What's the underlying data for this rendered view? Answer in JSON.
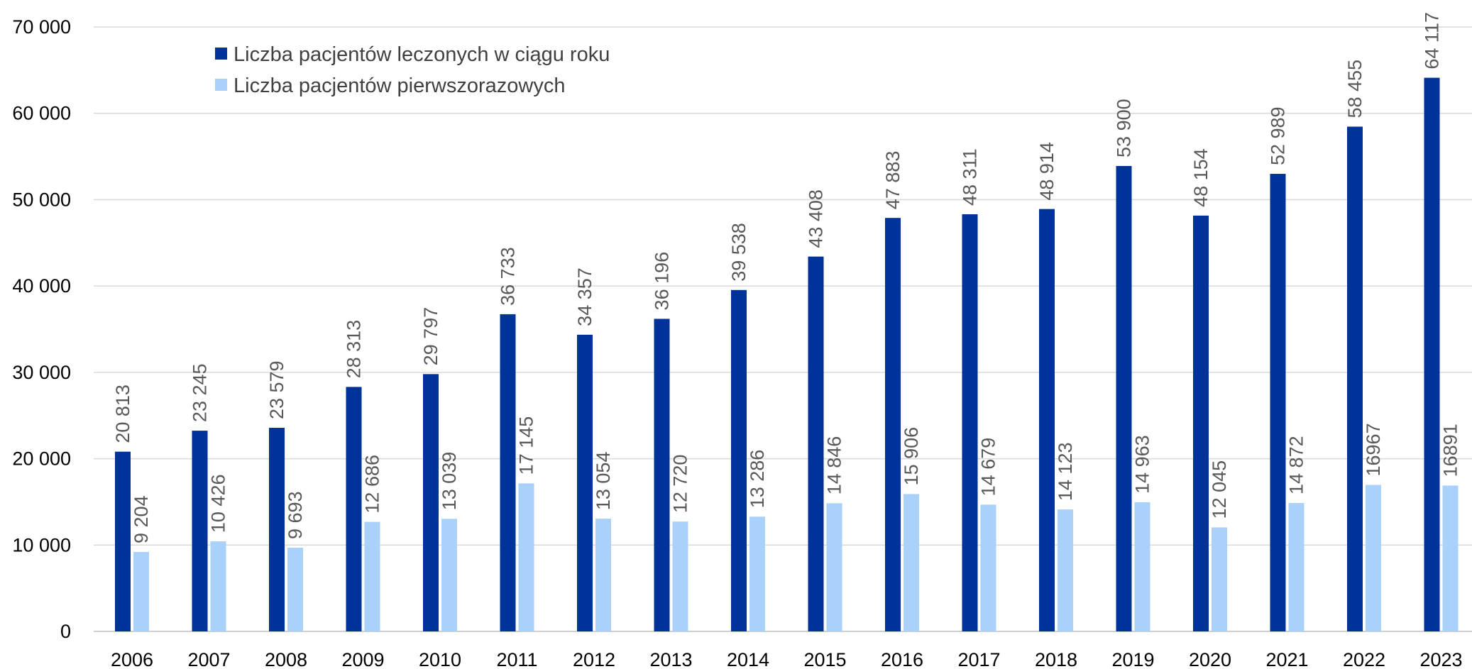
{
  "chart_data": {
    "type": "bar",
    "categories": [
      "2006",
      "2007",
      "2008",
      "2009",
      "2010",
      "2011",
      "2012",
      "2013",
      "2014",
      "2015",
      "2016",
      "2017",
      "2018",
      "2019",
      "2020",
      "2021",
      "2022",
      "2023"
    ],
    "series": [
      {
        "name": "Liczba pacjentów leczonych w ciągu roku",
        "color": "#003399",
        "values": [
          20813,
          23245,
          23579,
          28313,
          29797,
          36733,
          34357,
          36196,
          39538,
          43408,
          47883,
          48311,
          48914,
          53900,
          48154,
          52989,
          58455,
          64117
        ],
        "labels": [
          "20 813",
          "23 245",
          "23 579",
          "28 313",
          "29 797",
          "36 733",
          "34 357",
          "36 196",
          "39 538",
          "43 408",
          "47 883",
          "48 311",
          "48 914",
          "53 900",
          "48 154",
          "52 989",
          "58 455",
          "64 117"
        ]
      },
      {
        "name": "Liczba pacjentów pierwszorazowych",
        "color": "#a9d1fa",
        "values": [
          9204,
          10426,
          9693,
          12686,
          13039,
          17145,
          13054,
          12720,
          13286,
          14846,
          15906,
          14679,
          14123,
          14963,
          12045,
          14872,
          16967,
          16891
        ],
        "labels": [
          "9 204",
          "10 426",
          "9 693",
          "12 686",
          "13 039",
          "17 145",
          "13 054",
          "12 720",
          "13 286",
          "14 846",
          "15 906",
          "14 679",
          "14 123",
          "14 963",
          "12 045",
          "14 872",
          "16967",
          "16891"
        ]
      }
    ],
    "yticks": [
      0,
      10000,
      20000,
      30000,
      40000,
      50000,
      60000,
      70000
    ],
    "ytick_labels": [
      "0",
      "10 000",
      "20 000",
      "30 000",
      "40 000",
      "50 000",
      "60 000",
      "70 000"
    ],
    "ylim": [
      0,
      70000
    ],
    "grid": true,
    "legend_position": "top-left",
    "title": "",
    "xlabel": "",
    "ylabel": ""
  }
}
